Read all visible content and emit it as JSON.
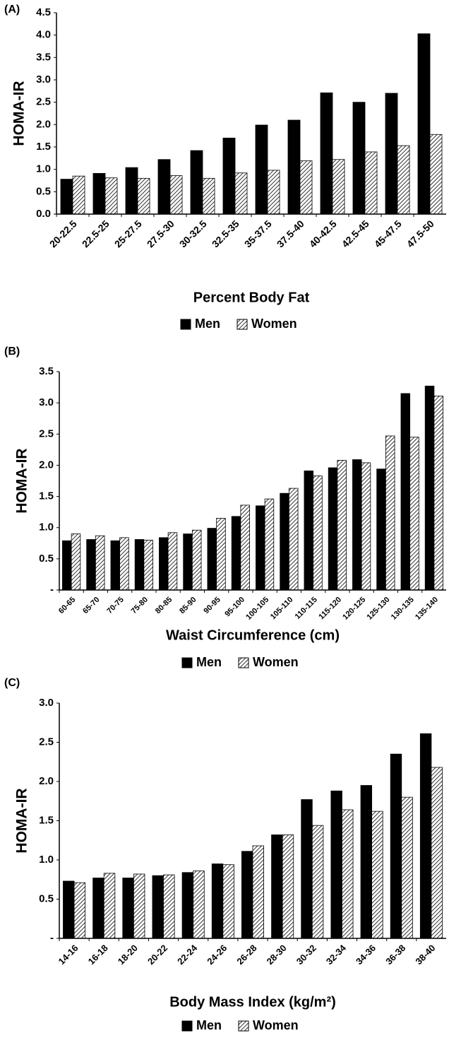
{
  "chart_data": [
    {
      "type": "bar",
      "panel": "(A)",
      "xlabel": "Percent Body Fat",
      "ylabel": "HOMA-IR",
      "categories": [
        "20-22.5",
        "22.5-25",
        "25-27.5",
        "27.5-30",
        "30-32.5",
        "32.5-35",
        "35-37.5",
        "37.5-40",
        "40-42.5",
        "42.5-45",
        "45-47.5",
        "47.5-50"
      ],
      "series": [
        {
          "name": "Men",
          "color": "#000000",
          "values": [
            0.78,
            0.91,
            1.04,
            1.22,
            1.42,
            1.7,
            1.99,
            2.1,
            2.71,
            2.5,
            2.7,
            4.03
          ]
        },
        {
          "name": "Women",
          "color": "#000000",
          "hatch": true,
          "values": [
            0.85,
            0.81,
            0.8,
            0.86,
            0.8,
            0.92,
            0.98,
            1.19,
            1.22,
            1.39,
            1.53,
            1.78
          ]
        }
      ],
      "ylim": [
        0,
        4.5
      ],
      "yticks": [
        {
          "value": 0,
          "label": "0.0"
        },
        0.5,
        {
          "value": 1,
          "label": "1.0"
        },
        1.5,
        {
          "value": 2,
          "label": "2.0"
        },
        2.5,
        {
          "value": 3,
          "label": "3.0"
        },
        3.5,
        {
          "value": 4,
          "label": "4.0"
        },
        4.5
      ],
      "legend": "bottom"
    },
    {
      "type": "bar",
      "panel": "(B)",
      "xlabel": "Waist Circumference (cm)",
      "ylabel": "HOMA-IR",
      "categories": [
        "60-65",
        "65-70",
        "70-75",
        "75-80",
        "80-85",
        "85-90",
        "90-95",
        "95-100",
        "100-105",
        "105-110",
        "110-115",
        "115-120",
        "120-125",
        "125-130",
        "130-135",
        "135-140"
      ],
      "series": [
        {
          "name": "Men",
          "color": "#000000",
          "values": [
            0.79,
            0.81,
            0.79,
            0.81,
            0.84,
            0.9,
            0.99,
            1.18,
            1.35,
            1.55,
            1.91,
            1.96,
            2.09,
            1.94,
            3.15,
            3.27
          ]
        },
        {
          "name": "Women",
          "color": "#000000",
          "hatch": true,
          "values": [
            0.9,
            0.87,
            0.84,
            0.8,
            0.92,
            0.96,
            1.15,
            1.36,
            1.46,
            1.63,
            1.83,
            2.08,
            2.04,
            2.47,
            2.45,
            3.11
          ]
        }
      ],
      "ylim": [
        0,
        3.5
      ],
      "yticks": [
        {
          "value": 0,
          "label": "-"
        },
        0.5,
        {
          "value": 1,
          "label": "1.0"
        },
        1.5,
        {
          "value": 2,
          "label": "2.0"
        },
        2.5,
        {
          "value": 3,
          "label": "3.0"
        },
        3.5
      ],
      "legend": "bottom"
    },
    {
      "type": "bar",
      "panel": "(C)",
      "xlabel": "Body Mass Index (kg/m²)",
      "ylabel": "HOMA-IR",
      "categories": [
        "14-16",
        "16-18",
        "18-20",
        "20-22",
        "22-24",
        "24-26",
        "26-28",
        "28-30",
        "30-32",
        "32-34",
        "34-36",
        "36-38",
        "38-40"
      ],
      "series": [
        {
          "name": "Men",
          "color": "#000000",
          "values": [
            0.73,
            0.77,
            0.77,
            0.8,
            0.84,
            0.95,
            1.11,
            1.32,
            1.77,
            1.88,
            1.95,
            2.35,
            2.61
          ]
        },
        {
          "name": "Women",
          "color": "#000000",
          "hatch": true,
          "values": [
            0.71,
            0.83,
            0.82,
            0.81,
            0.86,
            0.94,
            1.18,
            1.32,
            1.44,
            1.64,
            1.62,
            1.8,
            2.18
          ]
        }
      ],
      "ylim": [
        0,
        3
      ],
      "yticks": [
        {
          "value": 0,
          "label": "-"
        },
        0.5,
        {
          "value": 1,
          "label": "1.0"
        },
        1.5,
        {
          "value": 2,
          "label": "2.0"
        },
        2.5,
        {
          "value": 3,
          "label": "3.0"
        }
      ],
      "legend": "bottom"
    }
  ]
}
